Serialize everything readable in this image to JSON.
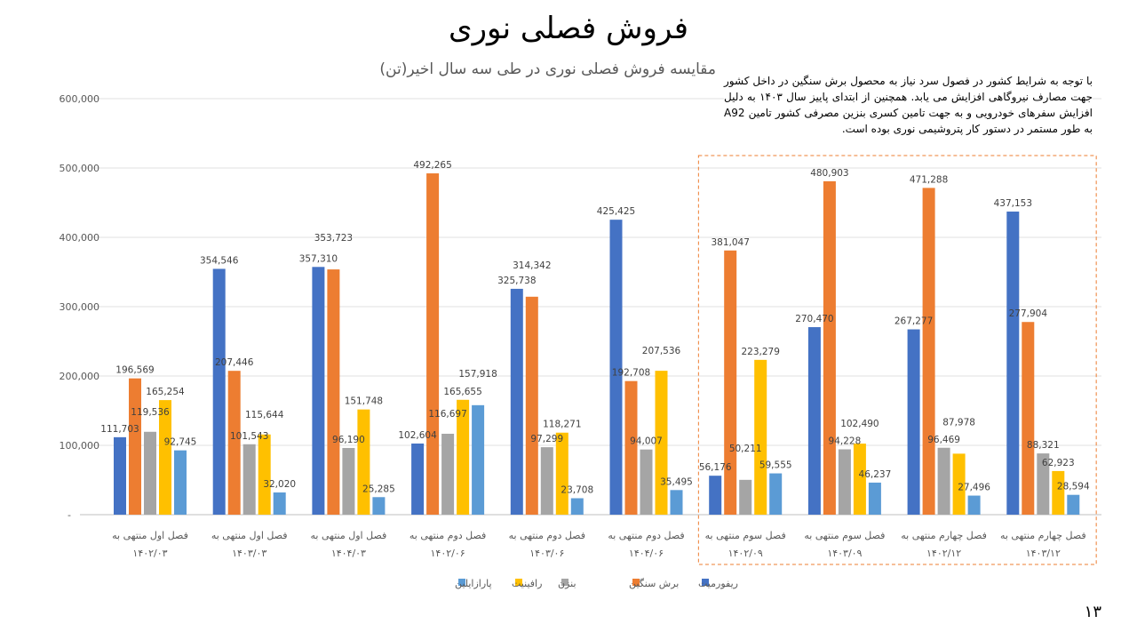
{
  "title": "فروش فصلی نوری",
  "subtitle": "مقایسه فروش فصلی نوری در طی سه سال اخیر(تن)",
  "note": "با توجه به شرایط کشور در فصول سرد نیاز به محصول برش سنگین در داخل کشور جهت مصارف نیروگاهی افزایش می یابد. همچنین از ابتدای پاییز سال ۱۴۰۳ به دلیل افزایش سفرهای خودرویی و به جهت تامین کسری بنزین مصرفی کشور تامین A92 به طور مستمر در دستور کار پتروشیمی نوری بوده است.",
  "page_number": "۱۳",
  "highlight_color": "#ED7D31",
  "chart_data": {
    "type": "bar",
    "title": "فروش فصلی نوری",
    "subtitle": "مقایسه فروش فصلی نوری در طی سه سال اخیر(تن)",
    "categories": [
      [
        "فصل اول منتهی به",
        "۱۴۰۲/۰۳"
      ],
      [
        "فصل اول منتهی به",
        "۱۴۰۳/۰۳"
      ],
      [
        "فصل اول منتهی به",
        "۱۴۰۴/۰۳"
      ],
      [
        "فصل دوم منتهی به",
        "۱۴۰۲/۰۶"
      ],
      [
        "فصل دوم منتهی به",
        "۱۴۰۳/۰۶"
      ],
      [
        "فصل دوم منتهی به",
        "۱۴۰۴/۰۶"
      ],
      [
        "فصل سوم منتهی به",
        "۱۴۰۲/۰۹"
      ],
      [
        "فصل سوم منتهی به",
        "۱۴۰۳/۰۹"
      ],
      [
        "فصل چهارم منتهی به",
        "۱۴۰۲/۱۲"
      ],
      [
        "فصل چهارم منتهی به",
        "۱۴۰۳/۱۲"
      ]
    ],
    "series": [
      {
        "name": "ریفورمیت",
        "color": "#4472C4",
        "values": [
          111703,
          354546,
          357310,
          102604,
          325738,
          425425,
          56176,
          270470,
          267277,
          437153
        ]
      },
      {
        "name": "برش سنگین",
        "color": "#ED7D31",
        "values": [
          196569,
          207446,
          353723,
          492265,
          314342,
          192708,
          381047,
          480903,
          471288,
          277904
        ]
      },
      {
        "name": "بنزن",
        "color": "#A5A5A5",
        "values": [
          119536,
          101543,
          96190,
          116697,
          97299,
          94007,
          50211,
          94228,
          96469,
          88321
        ]
      },
      {
        "name": "رافینیت",
        "color": "#FFC000",
        "values": [
          165254,
          115644,
          151748,
          165655,
          118271,
          207536,
          223279,
          102490,
          87978,
          62923
        ]
      },
      {
        "name": "پارازایلین",
        "color": "#5B9BD5",
        "values": [
          92745,
          32020,
          25285,
          157918,
          23708,
          35495,
          59555,
          46237,
          27496,
          28594
        ]
      }
    ],
    "y_ticks": [
      "-",
      "100,000",
      "200,000",
      "300,000",
      "400,000",
      "500,000",
      "600,000"
    ],
    "ylim": [
      0,
      600000
    ],
    "grid": true,
    "legend_position": "bottom",
    "highlighted_categories": [
      6,
      7,
      8,
      9
    ]
  }
}
